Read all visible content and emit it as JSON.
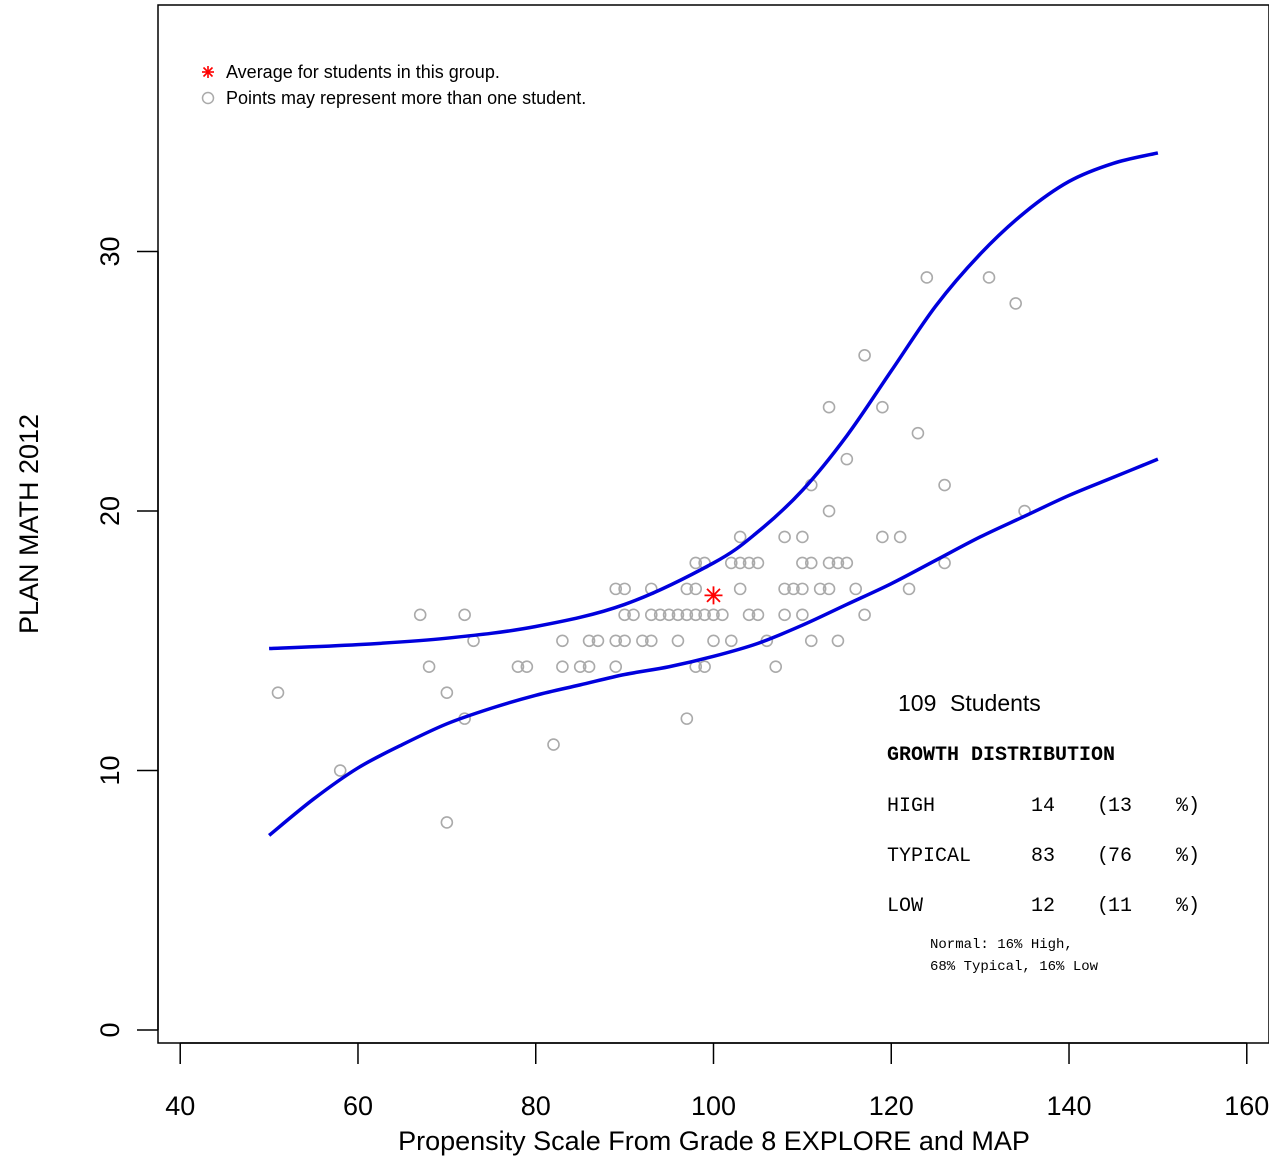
{
  "chart_data": {
    "type": "scatter",
    "xlabel": "Propensity Scale From Grade 8 EXPLORE and MAP",
    "ylabel": "PLAN MATH 2012",
    "xlim": [
      37.5,
      162.5
    ],
    "ylim": [
      -0.5,
      39.5
    ],
    "x_ticks": [
      40,
      60,
      80,
      100,
      120,
      140,
      160
    ],
    "y_ticks": [
      0,
      10,
      20,
      30
    ],
    "grid": false,
    "legend": {
      "placement": "top-left",
      "items": [
        {
          "label": "Average for students in this group.",
          "marker": "asterisk",
          "color": "#ff0000"
        },
        {
          "label": "Points may represent more than one student.",
          "marker": "circle",
          "color": "#aaaaaa"
        }
      ]
    },
    "average_point": {
      "x": 100,
      "y": 16.75,
      "color": "#ff0000"
    },
    "points": [
      [
        51,
        13
      ],
      [
        58,
        10
      ],
      [
        67,
        16
      ],
      [
        68,
        14
      ],
      [
        70,
        13
      ],
      [
        70,
        8
      ],
      [
        72,
        16
      ],
      [
        72,
        12
      ],
      [
        73,
        15
      ],
      [
        78,
        14
      ],
      [
        79,
        14
      ],
      [
        82,
        11
      ],
      [
        83,
        15
      ],
      [
        83,
        14
      ],
      [
        85,
        14
      ],
      [
        86,
        15
      ],
      [
        86,
        14
      ],
      [
        87,
        15
      ],
      [
        89,
        17
      ],
      [
        89,
        15
      ],
      [
        89,
        14
      ],
      [
        90,
        17
      ],
      [
        90,
        16
      ],
      [
        90,
        15
      ],
      [
        91,
        16
      ],
      [
        92,
        15
      ],
      [
        93,
        17
      ],
      [
        93,
        16
      ],
      [
        93,
        15
      ],
      [
        94,
        16
      ],
      [
        95,
        16
      ],
      [
        96,
        16
      ],
      [
        96,
        15
      ],
      [
        97,
        17
      ],
      [
        97,
        16
      ],
      [
        97,
        12
      ],
      [
        98,
        18
      ],
      [
        98,
        17
      ],
      [
        98,
        16
      ],
      [
        98,
        14
      ],
      [
        99,
        18
      ],
      [
        99,
        16
      ],
      [
        99,
        14
      ],
      [
        100,
        16
      ],
      [
        100,
        15
      ],
      [
        101,
        16
      ],
      [
        102,
        18
      ],
      [
        102,
        15
      ],
      [
        103,
        19
      ],
      [
        103,
        18
      ],
      [
        103,
        17
      ],
      [
        104,
        18
      ],
      [
        104,
        16
      ],
      [
        105,
        18
      ],
      [
        105,
        16
      ],
      [
        106,
        15
      ],
      [
        107,
        14
      ],
      [
        108,
        19
      ],
      [
        108,
        17
      ],
      [
        108,
        16
      ],
      [
        109,
        17
      ],
      [
        110,
        19
      ],
      [
        110,
        18
      ],
      [
        110,
        17
      ],
      [
        110,
        16
      ],
      [
        111,
        21
      ],
      [
        111,
        18
      ],
      [
        111,
        15
      ],
      [
        112,
        17
      ],
      [
        113,
        24
      ],
      [
        113,
        20
      ],
      [
        113,
        18
      ],
      [
        113,
        17
      ],
      [
        114,
        18
      ],
      [
        114,
        15
      ],
      [
        115,
        22
      ],
      [
        115,
        18
      ],
      [
        116,
        17
      ],
      [
        117,
        26
      ],
      [
        117,
        16
      ],
      [
        119,
        24
      ],
      [
        119,
        19
      ],
      [
        121,
        19
      ],
      [
        122,
        17
      ],
      [
        123,
        23
      ],
      [
        124,
        29
      ],
      [
        126,
        21
      ],
      [
        126,
        18
      ],
      [
        131,
        29
      ],
      [
        134,
        28
      ],
      [
        135,
        20
      ]
    ],
    "upper_curve": [
      [
        50,
        14.7
      ],
      [
        60,
        14.85
      ],
      [
        70,
        15.1
      ],
      [
        80,
        15.55
      ],
      [
        90,
        16.4
      ],
      [
        100,
        18.0
      ],
      [
        105,
        19.2
      ],
      [
        110,
        20.8
      ],
      [
        115,
        22.9
      ],
      [
        120,
        25.4
      ],
      [
        125,
        27.9
      ],
      [
        130,
        29.9
      ],
      [
        135,
        31.5
      ],
      [
        140,
        32.7
      ],
      [
        145,
        33.4
      ],
      [
        150,
        33.8
      ]
    ],
    "lower_curve": [
      [
        50,
        7.5
      ],
      [
        55,
        8.9
      ],
      [
        60,
        10.1
      ],
      [
        65,
        11.0
      ],
      [
        70,
        11.8
      ],
      [
        75,
        12.4
      ],
      [
        80,
        12.9
      ],
      [
        85,
        13.3
      ],
      [
        90,
        13.7
      ],
      [
        95,
        14.0
      ],
      [
        100,
        14.4
      ],
      [
        105,
        14.9
      ],
      [
        110,
        15.6
      ],
      [
        115,
        16.4
      ],
      [
        120,
        17.2
      ],
      [
        125,
        18.1
      ],
      [
        130,
        19.0
      ],
      [
        135,
        19.8
      ],
      [
        140,
        20.6
      ],
      [
        145,
        21.3
      ],
      [
        150,
        22.0
      ]
    ],
    "curve_color": "#0000dd",
    "point_color": "#aaaaaa"
  },
  "summary": {
    "students_count": "109",
    "students_label": "Students",
    "heading": "GROWTH DISTRIBUTION",
    "rows": [
      {
        "label": "HIGH",
        "count": "14",
        "pct_open": "(",
        "pct": "13",
        "pct_close": "%)"
      },
      {
        "label": "TYPICAL",
        "count": "83",
        "pct_open": "(",
        "pct": "76",
        "pct_close": "%)"
      },
      {
        "label": "LOW",
        "count": "12",
        "pct_open": "(",
        "pct": "11",
        "pct_close": "%)"
      }
    ],
    "note_line1": "Normal: 16% High,",
    "note_line2": "68% Typical, 16% Low"
  }
}
